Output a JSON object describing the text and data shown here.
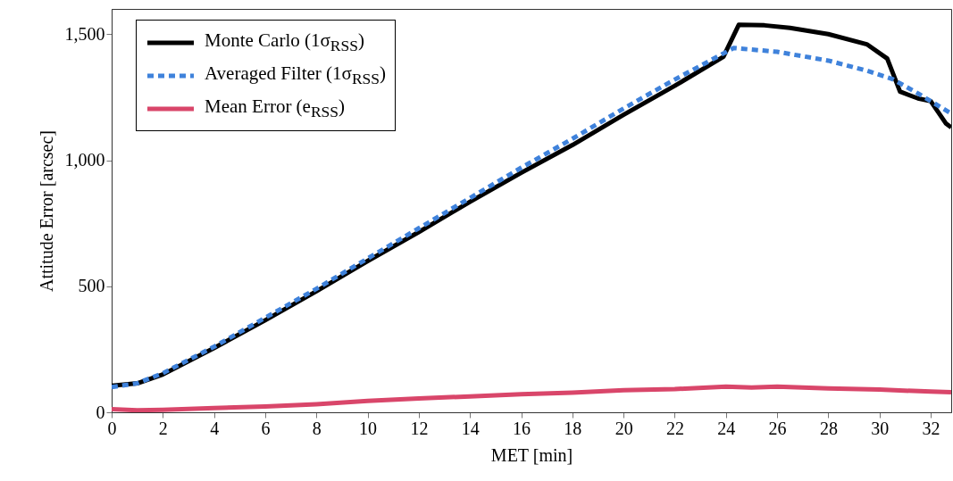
{
  "chart_data": {
    "type": "line",
    "xlabel": "MET [min]",
    "ylabel": "Attitude Error [arcsec]",
    "xlim": [
      0,
      32.8
    ],
    "xticks": [
      0,
      2,
      4,
      6,
      8,
      10,
      12,
      14,
      16,
      18,
      20,
      22,
      24,
      26,
      28,
      30,
      32
    ],
    "ylim": [
      0,
      1600
    ],
    "yticks": [
      0,
      500,
      {
        "value": 1000,
        "label": "1,000"
      },
      {
        "value": 1500,
        "label": "1,500"
      }
    ],
    "grid": false,
    "legend": "top left",
    "series": [
      {
        "name": "Monte Carlo (1σ$_{RSS}$)",
        "color": "#000000",
        "line_style": "solid",
        "x": [
          0,
          1,
          2,
          4,
          6,
          8,
          10,
          12,
          14,
          16,
          18,
          20,
          22,
          23.9,
          24.5,
          25.5,
          26.5,
          28,
          29.5,
          30.3,
          30.8,
          31.5,
          32.0,
          32.6,
          32.8
        ],
        "values": [
          105,
          115,
          150,
          255,
          365,
          480,
          600,
          715,
          835,
          950,
          1060,
          1180,
          1295,
          1410,
          1537,
          1535,
          1525,
          1500,
          1460,
          1403,
          1272,
          1245,
          1234,
          1145,
          1130
        ]
      },
      {
        "name": "Averaged Filter (1σ$_{RSS}$)",
        "color": "#3f82db",
        "line_style": "dashed",
        "x": [
          0,
          1,
          2,
          4,
          6,
          8,
          10,
          12,
          14,
          16,
          18,
          20,
          22,
          24.3,
          26,
          28,
          29.5,
          30.5,
          31.5,
          32.8
        ],
        "values": [
          100,
          115,
          155,
          260,
          375,
          490,
          610,
          730,
          850,
          970,
          1085,
          1205,
          1320,
          1445,
          1430,
          1395,
          1355,
          1322,
          1265,
          1185
        ]
      },
      {
        "name": "Mean Error (e$_{RSS}$)",
        "color": "#d9466a",
        "line_style": "solid",
        "x": [
          0,
          1,
          2,
          4,
          6,
          8,
          10,
          12,
          14,
          16,
          18,
          20,
          22,
          24,
          25,
          26,
          28,
          30,
          32,
          32.8
        ],
        "values": [
          12,
          8,
          10,
          17,
          23,
          32,
          45,
          55,
          63,
          72,
          78,
          88,
          92,
          102,
          98,
          102,
          95,
          90,
          82,
          80
        ]
      }
    ]
  }
}
